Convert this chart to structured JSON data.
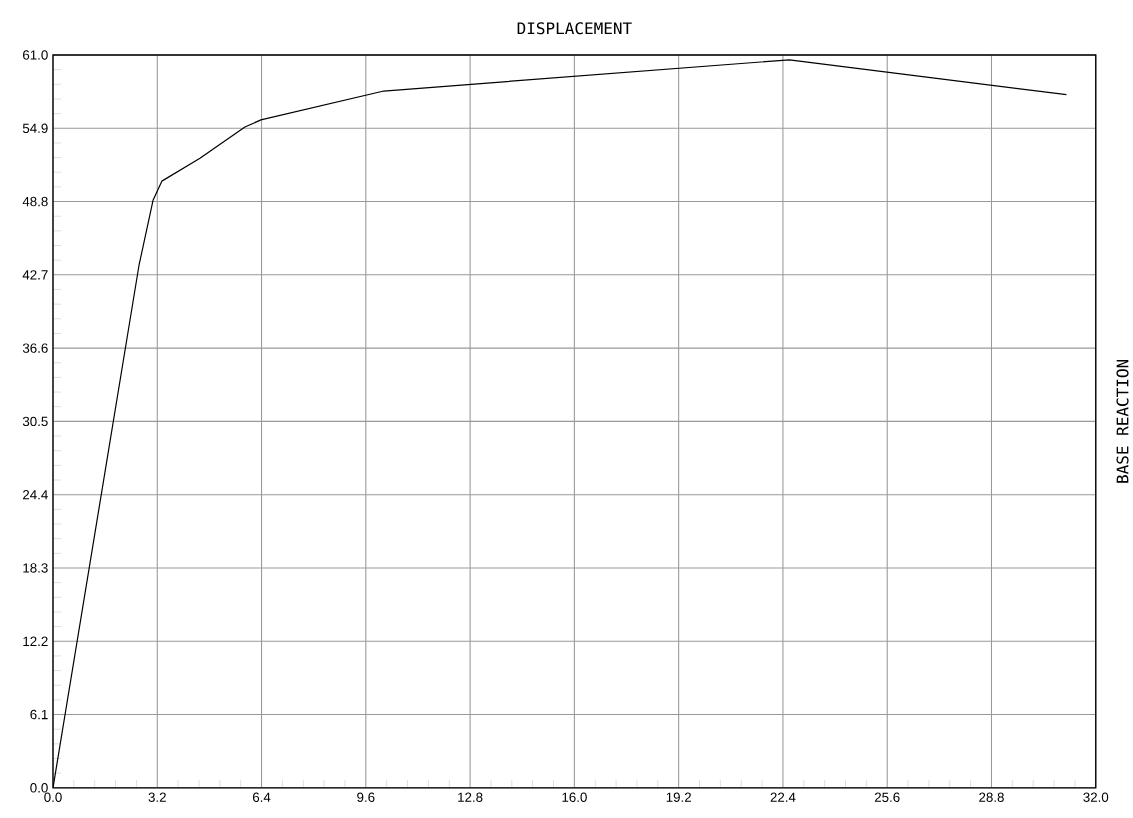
{
  "chart_data": {
    "type": "line",
    "xlabel": "DISPLACEMENT",
    "ylabel": "BASE REACTION",
    "x": [
      0,
      2.64,
      3.07,
      3.34,
      4.51,
      5.89,
      6.38,
      10.15,
      22.6,
      31.1
    ],
    "series": [
      {
        "color": "#000000",
        "values": [
          0,
          43.5,
          48.9,
          50.5,
          52.4,
          55.0,
          55.6,
          58.0,
          60.6,
          57.7
        ]
      }
    ],
    "xlim": [
      0,
      32
    ],
    "ylim": [
      0,
      61
    ],
    "xticks": [
      {
        "value": 0,
        "label": "0.0"
      },
      3.2,
      6.4,
      9.6,
      12.8,
      {
        "value": 16,
        "label": "16.0"
      },
      19.2,
      22.4,
      25.6,
      28.8,
      {
        "value": 32,
        "label": "32.0"
      }
    ],
    "yticks": [
      {
        "value": 0,
        "label": "0.0"
      },
      6.1,
      12.2,
      18.3,
      24.4,
      30.5,
      36.6,
      42.7,
      48.8,
      54.9,
      {
        "value": 61,
        "label": "61.0"
      }
    ],
    "grid": true,
    "marker": "none",
    "line_style": "solid"
  }
}
